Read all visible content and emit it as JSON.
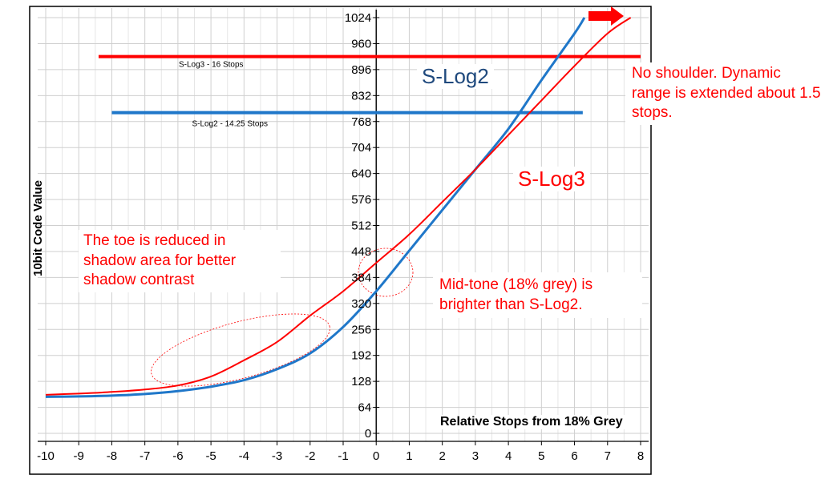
{
  "chart_data": {
    "type": "line",
    "xlabel": "Relative Stops from 18% Grey",
    "ylabel": "10bit Code Value",
    "xlim": [
      -10,
      8
    ],
    "ylim": [
      0,
      1024
    ],
    "x_ticks": [
      -10,
      -9,
      -8,
      -7,
      -6,
      -5,
      -4,
      -3,
      -2,
      -1,
      0,
      1,
      2,
      3,
      4,
      5,
      6,
      7,
      8
    ],
    "y_ticks": [
      0,
      64,
      128,
      192,
      256,
      320,
      384,
      448,
      512,
      576,
      640,
      704,
      768,
      832,
      896,
      960,
      1024
    ],
    "grid": true,
    "series": [
      {
        "name": "S-Log2",
        "color": "#1f77c9",
        "x": [
          -10,
          -9,
          -8,
          -7,
          -6,
          -5,
          -4,
          -3,
          -2,
          -1,
          0,
          1,
          2,
          3,
          4,
          5,
          6,
          6.3
        ],
        "y": [
          90,
          91,
          93,
          97,
          104,
          115,
          131,
          158,
          197,
          262,
          350,
          450,
          550,
          650,
          750,
          870,
          985,
          1024
        ]
      },
      {
        "name": "S-Log3",
        "color": "#ff0000",
        "x": [
          -10,
          -9,
          -8,
          -7,
          -6,
          -5,
          -4,
          -3,
          -2,
          -1,
          0,
          1,
          2,
          3,
          4,
          5,
          6,
          7,
          7.7
        ],
        "y": [
          95,
          98,
          102,
          108,
          118,
          140,
          180,
          225,
          290,
          350,
          420,
          490,
          570,
          650,
          735,
          820,
          905,
          985,
          1024
        ]
      }
    ],
    "range_lines": [
      {
        "label": "S-Log3 - 16 Stops",
        "color": "#ff0000",
        "y": 928,
        "x_start": -8.4,
        "x_end": 8
      },
      {
        "label": "S-Log2 - 14.25 Stops",
        "color": "#1f77c9",
        "y": 790,
        "x_start": -8,
        "x_end": 6.25
      }
    ],
    "labels": {
      "slog2": "S-Log2",
      "slog3": "S-Log3"
    },
    "annotations": {
      "toe": "The toe is reduced in shadow area for better shadow contrast",
      "midtone": "Mid-tone (18% grey) is brighter than S-Log2.",
      "shoulder": "No shoulder. Dynamic range is extended about 1.5 stops."
    },
    "arrow_color": "#ff0000"
  }
}
